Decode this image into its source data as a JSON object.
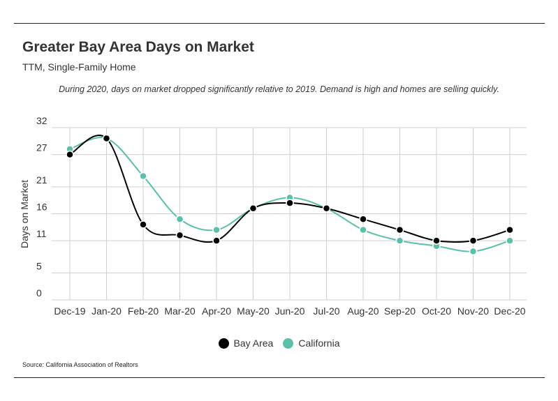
{
  "header": {
    "title": "Greater Bay Area Days on Market",
    "subtitle": "TTM, Single-Family Home",
    "note": "During 2020, days on market dropped significantly relative to 2019. Demand is high and homes are selling quickly."
  },
  "footer": {
    "source": "Source:  California Association of Realtors"
  },
  "chart_data": {
    "type": "line",
    "categories": [
      "Dec-19",
      "Jan-20",
      "Feb-20",
      "Mar-20",
      "Apr-20",
      "May-20",
      "Jun-20",
      "Jul-20",
      "Aug-20",
      "Sep-20",
      "Oct-20",
      "Nov-20",
      "Dec-20"
    ],
    "series": [
      {
        "name": "Bay Area",
        "color": "#000000",
        "values": [
          27,
          30,
          14,
          12,
          11,
          17,
          18,
          17,
          15,
          13,
          11,
          11,
          13
        ]
      },
      {
        "name": "California",
        "color": "#5bbfaa",
        "values": [
          28,
          30,
          23,
          15,
          13,
          17,
          19,
          17,
          13,
          11,
          10,
          9,
          11
        ]
      }
    ],
    "yticks": [
      "32",
      "27",
      "21",
      "16",
      "11",
      "5",
      "0"
    ],
    "ylim": [
      0,
      32
    ],
    "ylabel": "Days on Market",
    "xlabel": "",
    "grid": true,
    "legend": "bottom-center"
  }
}
